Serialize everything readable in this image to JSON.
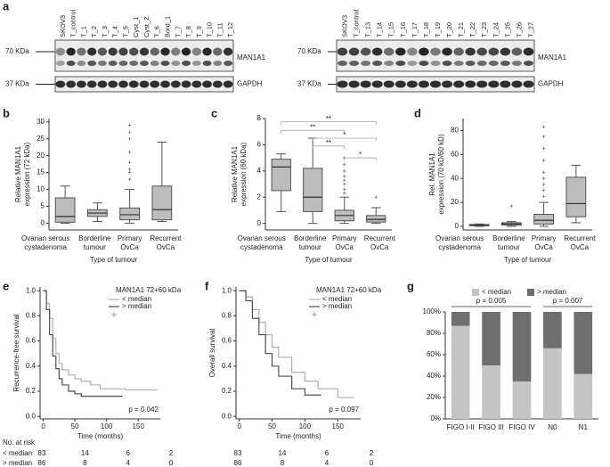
{
  "blots": {
    "label": "a",
    "panels": [
      {
        "lanes": [
          "SKOV3",
          "T_control",
          "T_1",
          "T_2",
          "T_3",
          "T_4",
          "T_5",
          "Cyst_1",
          "Cyst_2",
          "T_6",
          "Bord_1",
          "T_7",
          "T_8",
          "T_9",
          "T_10",
          "T_11",
          "T_12"
        ],
        "markers": [
          "70 KDa",
          "37 KDa"
        ],
        "proteins": [
          "MAN1A1",
          "GAPDH"
        ]
      },
      {
        "lanes": [
          "SKOV3",
          "T_control",
          "T_13",
          "T_14",
          "T_15",
          "T_16",
          "T_17",
          "T_18",
          "T_19",
          "T_20",
          "T_21",
          "T_22",
          "T_23",
          "T_24",
          "T_25",
          "T_26",
          "T_27"
        ],
        "markers": [
          "70 KDa",
          "37 KDa"
        ],
        "proteins": [
          "MAN1A1",
          "GAPDH"
        ]
      }
    ]
  },
  "chart_data": [
    {
      "label": "b",
      "type": "box",
      "ylabel": [
        "Relative MAN1A1",
        "expression (72 kDa)"
      ],
      "xlabel": "Type of tumour",
      "categories": [
        [
          "Ovarian serous",
          "cystadenoma"
        ],
        [
          "Borderline",
          "tumour"
        ],
        [
          "Primary",
          "OvCa"
        ],
        [
          "Recurrent",
          "OvCa"
        ]
      ],
      "boxes": [
        {
          "low": 0,
          "q1": 0.3,
          "median": 2,
          "q3": 7.5,
          "high": 11,
          "outliers": []
        },
        {
          "low": 0.5,
          "q1": 2,
          "median": 3,
          "q3": 4,
          "high": 6,
          "outliers": []
        },
        {
          "low": 0,
          "q1": 1,
          "median": 2.5,
          "q3": 4.5,
          "high": 10,
          "outliers": [
            13,
            15,
            16,
            18,
            21,
            25,
            27,
            29
          ]
        },
        {
          "low": 0.5,
          "q1": 1,
          "median": 4,
          "q3": 11,
          "high": 24,
          "outliers": []
        }
      ],
      "ylim": [
        -2,
        31
      ],
      "yticks": [
        0,
        5,
        10,
        15,
        20,
        25,
        30
      ],
      "color": "#bdbdbd"
    },
    {
      "label": "c",
      "type": "box",
      "ylabel": [
        "Relative MAN1A1",
        "expression (60 kDa)"
      ],
      "xlabel": "Type of tumour",
      "categories": [
        [
          "Ovarian serous",
          "cystadenoma"
        ],
        [
          "Borderline",
          "tumour"
        ],
        [
          "Primary",
          "OvCa"
        ],
        [
          "Recurrent",
          "OvCa"
        ]
      ],
      "boxes": [
        {
          "low": 0.9,
          "q1": 2.5,
          "median": 4.3,
          "q3": 4.9,
          "high": 5.3,
          "outliers": []
        },
        {
          "low": 0,
          "q1": 0.9,
          "median": 2,
          "q3": 4.2,
          "high": 6.5,
          "outliers": []
        },
        {
          "low": 0,
          "q1": 0.2,
          "median": 0.6,
          "q3": 1,
          "high": 2,
          "outliers": [
            2.3,
            2.6,
            3,
            3.3,
            3.6,
            4,
            4.5,
            5
          ]
        },
        {
          "low": 0,
          "q1": 0.1,
          "median": 0.3,
          "q3": 0.6,
          "high": 1.2,
          "outliers": [
            2
          ]
        }
      ],
      "ylim": [
        -0.5,
        8
      ],
      "yticks": [
        0,
        2,
        4,
        6,
        8
      ],
      "color": "#bdbdbd",
      "annotations": [
        "**",
        "**",
        "*",
        "**",
        "*"
      ]
    },
    {
      "label": "d",
      "type": "box",
      "ylabel": [
        "Rel. MAN1A1",
        "expression (70 kD/60 kD)"
      ],
      "xlabel": "Type of tumour",
      "categories": [
        [
          "Ovarian serous",
          "cystadenoma"
        ],
        [
          "Borderline",
          "tumour"
        ],
        [
          "Primary",
          "OvCa"
        ],
        [
          "Recurrent",
          "OvCa"
        ]
      ],
      "boxes": [
        {
          "low": 0,
          "q1": 0.5,
          "median": 1,
          "q3": 1.5,
          "high": 2,
          "outliers": []
        },
        {
          "low": 0,
          "q1": 1,
          "median": 2,
          "q3": 3,
          "high": 4,
          "outliers": [
            17
          ]
        },
        {
          "low": 0,
          "q1": 2,
          "median": 5,
          "q3": 10,
          "high": 20,
          "outliers": [
            25,
            30,
            35,
            40,
            45,
            55,
            65,
            75,
            83
          ]
        },
        {
          "low": 3,
          "q1": 8,
          "median": 19,
          "q3": 41,
          "high": 51,
          "outliers": []
        }
      ],
      "ylim": [
        -3,
        90
      ],
      "yticks": [
        0,
        20,
        40,
        60,
        80
      ],
      "color": "#bdbdbd"
    },
    {
      "label": "e",
      "type": "line",
      "step": true,
      "ylabel": "Recurrence-free survival",
      "xlabel": "Time (months)",
      "legend_title": "MAN1A1 72+60 kDa",
      "series": [
        {
          "name": "< median",
          "color": "#b0b0b0",
          "x": [
            0,
            5,
            10,
            15,
            20,
            25,
            30,
            40,
            50,
            60,
            75,
            90,
            110,
            130,
            180
          ],
          "values": [
            1,
            0.9,
            0.78,
            0.62,
            0.5,
            0.42,
            0.37,
            0.33,
            0.3,
            0.28,
            0.25,
            0.22,
            0.22,
            0.21,
            0.21
          ]
        },
        {
          "name": "> median",
          "color": "#505050",
          "x": [
            0,
            5,
            10,
            15,
            20,
            25,
            30,
            40,
            50,
            60,
            80,
            100,
            125
          ],
          "values": [
            1,
            0.85,
            0.65,
            0.48,
            0.38,
            0.3,
            0.25,
            0.2,
            0.18,
            0.16,
            0.16,
            0.16,
            0.16
          ]
        }
      ],
      "xlim": [
        -5,
        185
      ],
      "xticks": [
        0,
        50,
        100,
        150
      ],
      "ylim": [
        -0.02,
        1.03
      ],
      "yticks": [
        {
          "value": 0,
          "label": "0.0"
        },
        {
          "value": 0.2,
          "label": "0.2"
        },
        {
          "value": 0.4,
          "label": "0.4"
        },
        {
          "value": 0.6,
          "label": "0.6"
        },
        {
          "value": 0.8,
          "label": "0.8"
        },
        {
          "value": 1,
          "label": "1.0"
        }
      ],
      "annotation": "p = 0.042",
      "risk_table": {
        "title": "No. at risk",
        "rows": [
          {
            "name": "< median",
            "values": [
              83,
              14,
              6,
              2
            ]
          },
          {
            "name": "> median",
            "values": [
              86,
              8,
              4,
              0
            ]
          }
        ]
      }
    },
    {
      "label": "f",
      "type": "line",
      "step": true,
      "ylabel": "Overall survival",
      "xlabel": "Time (months)",
      "legend_title": "MAN1A1 72+60 kDa",
      "series": [
        {
          "name": "< median",
          "color": "#b0b0b0",
          "x": [
            0,
            10,
            20,
            30,
            40,
            50,
            60,
            80,
            100,
            120,
            150,
            175
          ],
          "values": [
            1,
            0.95,
            0.85,
            0.75,
            0.65,
            0.55,
            0.47,
            0.35,
            0.28,
            0.22,
            0.15,
            0.15
          ]
        },
        {
          "name": "> median",
          "color": "#505050",
          "x": [
            0,
            10,
            20,
            30,
            40,
            50,
            60,
            80,
            100,
            125
          ],
          "values": [
            1,
            0.92,
            0.78,
            0.65,
            0.5,
            0.4,
            0.32,
            0.22,
            0.17,
            0.17
          ]
        }
      ],
      "xlim": [
        -5,
        185
      ],
      "xticks": [
        0,
        50,
        100,
        150
      ],
      "ylim": [
        -0.02,
        1.03
      ],
      "yticks": [
        {
          "value": 0,
          "label": "0.0"
        },
        {
          "value": 0.2,
          "label": "0.2"
        },
        {
          "value": 0.4,
          "label": "0.4"
        },
        {
          "value": 0.6,
          "label": "0.6"
        },
        {
          "value": 0.8,
          "label": "0.8"
        },
        {
          "value": 1,
          "label": "1.0"
        }
      ],
      "annotation": "p = 0.097",
      "risk_table": {
        "rows": [
          {
            "values": [
              83,
              14,
              6,
              2
            ]
          },
          {
            "values": [
              86,
              8,
              4,
              0
            ]
          }
        ]
      }
    },
    {
      "label": "g",
      "type": "stacked_bar",
      "categories": [
        "FIGO I-II",
        "FIGO III",
        "FIGO IV",
        "N0",
        "N1"
      ],
      "series": [
        {
          "name": "< median",
          "color": "#c4c4c4",
          "values": [
            87,
            50,
            35,
            66,
            42
          ]
        },
        {
          "name": "> median",
          "color": "#6e6e6e",
          "values": [
            13,
            50,
            65,
            34,
            58
          ]
        }
      ],
      "ylim": [
        0,
        100
      ],
      "yticks": [
        {
          "value": 0,
          "label": "0%"
        },
        {
          "value": 20,
          "label": "20%"
        },
        {
          "value": 40,
          "label": "40%"
        },
        {
          "value": 60,
          "label": "60%"
        },
        {
          "value": 80,
          "label": "80%"
        },
        {
          "value": 100,
          "label": "100%"
        }
      ],
      "annotations": [
        "p = 0.005",
        "p = 0.007"
      ],
      "legend": "top"
    }
  ]
}
